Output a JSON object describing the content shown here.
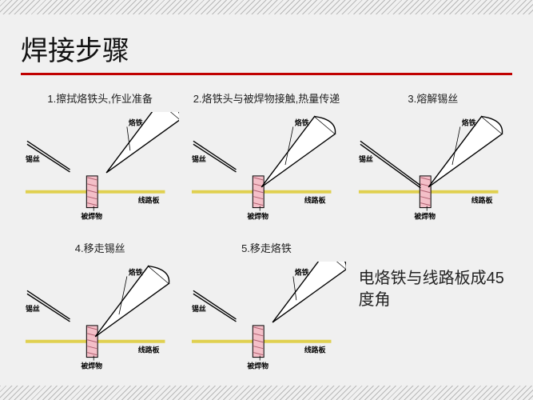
{
  "title": "焊接步骤",
  "rule_color": "#c00000",
  "note": "电烙铁与线路板成45度角",
  "labels": {
    "iron": "烙铁",
    "wire": "锡丝",
    "board": "线路板",
    "work": "被焊物"
  },
  "colors": {
    "background": "#f0f0f0",
    "board_line": "#e0d050",
    "work_fill": "#f4bfc8",
    "work_hatch": "#b06070",
    "stroke": "#000000",
    "text": "#000000",
    "label_font_size": 9
  },
  "steps": [
    {
      "caption": "1.擦拭烙铁头,作业准备",
      "wire_close": false,
      "iron_close": false
    },
    {
      "caption": "2.烙铁头与被焊物接触,热量传递",
      "wire_close": false,
      "iron_close": true
    },
    {
      "caption": "3.熔解锡丝",
      "wire_close": true,
      "iron_close": true
    },
    {
      "caption": "4.移走锡丝",
      "wire_close": false,
      "iron_close": true
    },
    {
      "caption": "5.移走烙铁",
      "wire_close": false,
      "iron_close": false
    }
  ]
}
